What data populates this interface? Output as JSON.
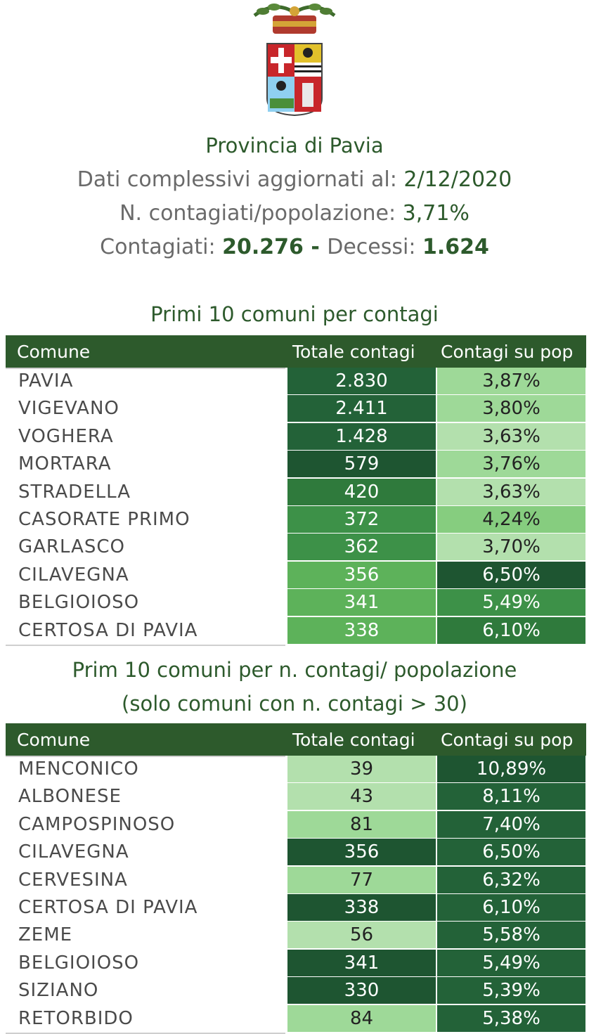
{
  "header": {
    "title": "Provincia di Pavia",
    "updated_label": "Dati complessivi aggiornati al: ",
    "updated_value": "2/12/2020",
    "ratio_label": "N. contagiati/popolazione: ",
    "ratio_value": "3,71%",
    "infected_label": "Contagiati:  ",
    "infected_value": "20.276",
    "separator": " - ",
    "deaths_label": "Decessi: ",
    "deaths_value": "1.624"
  },
  "colors": {
    "header_bg": "#2d5a2c",
    "title_text": "#2d5a2c",
    "scale": [
      "#b3e0ad",
      "#9ed998",
      "#86cd7f",
      "#5db25a",
      "#3d9148",
      "#2f7a3c",
      "#236238",
      "#1e5531"
    ]
  },
  "table1": {
    "section_title": "Primi 10 comuni per contagi",
    "columns": [
      "Comune",
      "Totale contagi",
      "Contagi su pop"
    ],
    "rows": [
      {
        "name": "PAVIA",
        "total": "2.830",
        "pct": "3,87%",
        "tot_shade": 6,
        "pct_shade": 1
      },
      {
        "name": "VIGEVANO",
        "total": "2.411",
        "pct": "3,80%",
        "tot_shade": 6,
        "pct_shade": 1
      },
      {
        "name": "VOGHERA",
        "total": "1.428",
        "pct": "3,63%",
        "tot_shade": 6,
        "pct_shade": 0
      },
      {
        "name": "MORTARA",
        "total": "579",
        "pct": "3,76%",
        "tot_shade": 7,
        "pct_shade": 1
      },
      {
        "name": "STRADELLA",
        "total": "420",
        "pct": "3,63%",
        "tot_shade": 5,
        "pct_shade": 0
      },
      {
        "name": "CASORATE PRIMO",
        "total": "372",
        "pct": "4,24%",
        "tot_shade": 4,
        "pct_shade": 2
      },
      {
        "name": "GARLASCO",
        "total": "362",
        "pct": "3,70%",
        "tot_shade": 4,
        "pct_shade": 0
      },
      {
        "name": "CILAVEGNA",
        "total": "356",
        "pct": "6,50%",
        "tot_shade": 3,
        "pct_shade": 7
      },
      {
        "name": "BELGIOIOSO",
        "total": "341",
        "pct": "5,49%",
        "tot_shade": 3,
        "pct_shade": 4
      },
      {
        "name": "CERTOSA DI PAVIA",
        "total": "338",
        "pct": "6,10%",
        "tot_shade": 3,
        "pct_shade": 5
      }
    ]
  },
  "table2": {
    "section_title_1": "Prim 10 comuni per n. contagi/ popolazione",
    "section_title_2": "(solo comuni con n. contagi > 30)",
    "columns": [
      "Comune",
      "Totale contagi",
      "Contagi su pop"
    ],
    "rows": [
      {
        "name": "MENCONICO",
        "total": "39",
        "pct": "10,89%",
        "tot_shade": 0,
        "pct_shade": 7
      },
      {
        "name": "ALBONESE",
        "total": "43",
        "pct": "8,11%",
        "tot_shade": 0,
        "pct_shade": 6
      },
      {
        "name": "CAMPOSPINOSO",
        "total": "81",
        "pct": "7,40%",
        "tot_shade": 1,
        "pct_shade": 6
      },
      {
        "name": "CILAVEGNA",
        "total": "356",
        "pct": "6,50%",
        "tot_shade": 7,
        "pct_shade": 6
      },
      {
        "name": "CERVESINA",
        "total": "77",
        "pct": "6,32%",
        "tot_shade": 1,
        "pct_shade": 6
      },
      {
        "name": "CERTOSA DI PAVIA",
        "total": "338",
        "pct": "6,10%",
        "tot_shade": 7,
        "pct_shade": 6
      },
      {
        "name": "ZEME",
        "total": "56",
        "pct": "5,58%",
        "tot_shade": 0,
        "pct_shade": 6
      },
      {
        "name": "BELGIOIOSO",
        "total": "341",
        "pct": "5,49%",
        "tot_shade": 7,
        "pct_shade": 6
      },
      {
        "name": "SIZIANO",
        "total": "330",
        "pct": "5,39%",
        "tot_shade": 7,
        "pct_shade": 6
      },
      {
        "name": "RETORBIDO",
        "total": "84",
        "pct": "5,38%",
        "tot_shade": 1,
        "pct_shade": 6
      }
    ]
  }
}
